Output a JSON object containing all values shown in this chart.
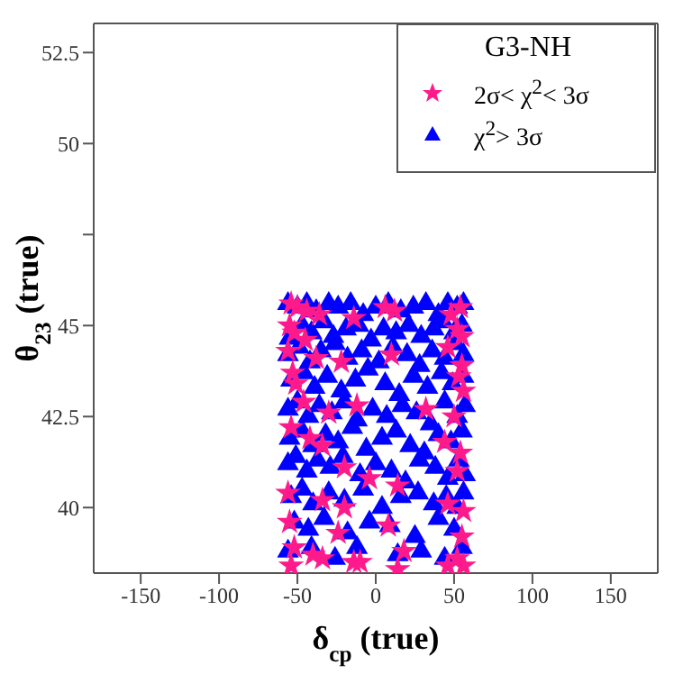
{
  "chart_data": {
    "type": "scatter",
    "xlabel": "δ$_{cp}$ (true)",
    "ylabel": "θ$_{23}$ (true)",
    "legend_title": "G3-NH",
    "legend": "top right",
    "grid": false,
    "xlim": [
      -180,
      180
    ],
    "xticks": [
      -150,
      -100,
      -50,
      0,
      50,
      100,
      150
    ],
    "ylim": [
      38.2,
      53.3
    ],
    "yticks": [
      40,
      42.5,
      45,
      {
        "value": 47.5,
        "label": null
      },
      50,
      52.5
    ],
    "series": [
      {
        "name": "χ$^{2}$> 3σ",
        "color": "#0000ff",
        "marker": "triangle",
        "x": [
          -56,
          -50,
          -44,
          -38,
          -30,
          -24,
          -16,
          -8,
          0,
          8,
          16,
          24,
          32,
          40,
          46,
          52,
          56,
          -55,
          -47,
          -41,
          -33,
          -27,
          -19,
          -11,
          -3,
          5,
          13,
          21,
          29,
          37,
          43,
          50,
          55,
          -56,
          -49,
          -42,
          -35,
          -26,
          -18,
          -9,
          2,
          11,
          20,
          28,
          36,
          44,
          51,
          56,
          -54,
          -46,
          -39,
          -31,
          -22,
          -13,
          -5,
          6,
          15,
          24,
          33,
          42,
          49,
          56,
          -56,
          -50,
          -43,
          -36,
          -28,
          -20,
          -12,
          -2,
          7,
          17,
          26,
          35,
          44,
          52,
          57,
          -55,
          -47,
          -40,
          -32,
          -24,
          -15,
          -6,
          4,
          13,
          22,
          31,
          40,
          48,
          55,
          -56,
          -51,
          -44,
          -37,
          -29,
          -21,
          -10,
          0,
          10,
          19,
          28,
          38,
          46,
          53,
          57,
          -54,
          -47,
          -40,
          -30,
          -20,
          -8,
          4,
          16,
          27,
          37,
          45,
          52,
          56,
          -52,
          -43,
          -33,
          -18,
          -4,
          9,
          25,
          40,
          50,
          -56,
          -41,
          -26,
          -12,
          14,
          29,
          44,
          55
        ],
        "values": [
          45.6,
          45.5,
          45.6,
          45.4,
          45.6,
          45.5,
          45.6,
          45.3,
          45.5,
          45.6,
          45.4,
          45.5,
          45.6,
          45.3,
          45.6,
          45.5,
          45.6,
          44.65,
          45.0,
          44.8,
          45.1,
          44.7,
          44.9,
          45.0,
          44.6,
          44.9,
          44.8,
          45.0,
          44.7,
          44.9,
          45.1,
          44.8,
          45.0,
          44.2,
          44.4,
          44.0,
          44.3,
          44.5,
          44.1,
          44.3,
          44.0,
          44.4,
          44.2,
          43.9,
          44.3,
          44.1,
          44.5,
          44.2,
          43.5,
          43.7,
          43.3,
          43.6,
          43.2,
          43.5,
          43.8,
          43.4,
          43.1,
          43.6,
          43.3,
          43.7,
          43.4,
          43.6,
          42.7,
          42.9,
          42.5,
          42.8,
          42.6,
          42.9,
          42.4,
          42.7,
          42.5,
          42.8,
          42.6,
          42.3,
          42.9,
          42.5,
          42.8,
          41.9,
          42.1,
          41.7,
          42.0,
          41.8,
          42.2,
          41.6,
          41.9,
          42.1,
          41.7,
          41.5,
          42.0,
          41.8,
          42.1,
          41.2,
          41.4,
          41.0,
          41.3,
          41.1,
          41.4,
          40.9,
          41.2,
          41.0,
          40.7,
          41.3,
          41.1,
          40.8,
          41.3,
          40.9,
          40.3,
          40.5,
          40.1,
          40.4,
          40.2,
          40.5,
          40.0,
          40.3,
          40.4,
          40.1,
          40.3,
          40.0,
          40.4,
          39.6,
          39.4,
          39.7,
          39.3,
          39.6,
          39.5,
          39.2,
          39.7,
          39.4,
          38.8,
          38.9,
          38.6,
          38.9,
          38.7,
          38.8,
          38.6,
          38.9
        ]
      },
      {
        "name": "2σ< χ$^{2}$< 3σ",
        "color": "#ff1a8c",
        "marker": "star",
        "x": [
          -54,
          -50,
          -44,
          -36,
          -14,
          6,
          12,
          48,
          54,
          -55,
          -52,
          -45,
          52,
          55,
          -56,
          -38,
          -22,
          10,
          46,
          55,
          -53,
          -51,
          53,
          56,
          -46,
          -30,
          -12,
          32,
          50,
          -54,
          -42,
          -34,
          44,
          54,
          -20,
          -4,
          14,
          52,
          -56,
          -34,
          -20,
          46,
          56,
          -55,
          -24,
          8,
          55,
          -52,
          -40,
          -14,
          18,
          52,
          -54,
          -34,
          -10,
          14,
          46,
          56
        ],
        "values": [
          45.6,
          45.5,
          45.4,
          45.3,
          45.2,
          45.5,
          45.4,
          45.3,
          45.5,
          45.0,
          44.8,
          44.6,
          44.9,
          44.7,
          44.3,
          44.1,
          44.0,
          44.2,
          44.4,
          43.9,
          43.7,
          43.4,
          43.6,
          43.2,
          42.9,
          42.6,
          42.8,
          42.7,
          42.5,
          42.2,
          41.9,
          41.7,
          41.8,
          41.5,
          41.1,
          40.8,
          40.6,
          41.0,
          40.4,
          40.2,
          40.0,
          40.1,
          39.9,
          39.6,
          39.3,
          39.5,
          39.2,
          38.9,
          38.7,
          38.5,
          38.8,
          38.6,
          38.4,
          38.6,
          38.5,
          38.3,
          38.4,
          38.4
        ]
      }
    ]
  }
}
